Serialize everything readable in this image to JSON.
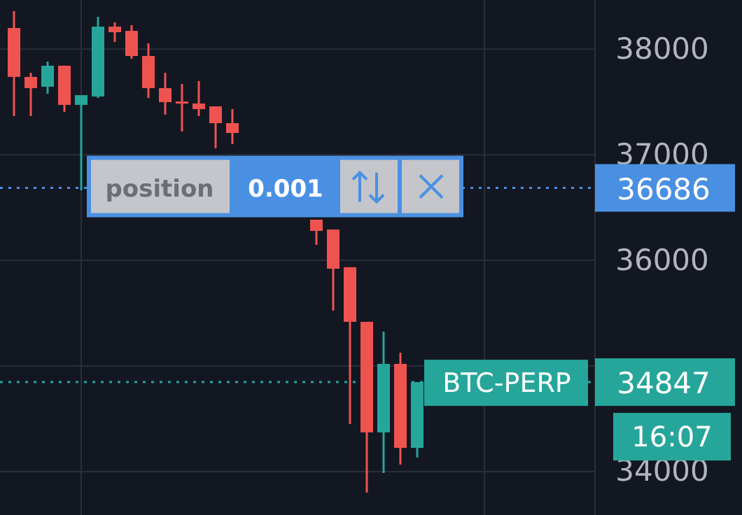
{
  "chart_data": {
    "type": "candlestick",
    "categories": [
      null,
      null,
      null,
      null,
      null,
      null,
      null,
      null,
      null,
      null,
      null,
      null,
      null,
      null,
      null,
      null,
      null,
      null,
      null,
      null,
      null,
      null,
      null,
      null,
      null,
      null,
      null,
      null,
      null,
      null,
      null,
      null,
      null,
      null,
      null
    ],
    "ohlc": [
      [
        38200,
        38359,
        37366,
        37737
      ],
      [
        37737,
        37776,
        37366,
        37631
      ],
      [
        37644,
        37882,
        37578,
        37843
      ],
      [
        37843,
        37843,
        37405,
        37472
      ],
      [
        37472,
        37564,
        36663,
        37564
      ],
      [
        37551,
        38306,
        37538,
        38213
      ],
      [
        38213,
        38253,
        38067,
        38160
      ],
      [
        38173,
        38227,
        37908,
        37935
      ],
      [
        37935,
        38054,
        37538,
        37631
      ],
      [
        37631,
        37776,
        37379,
        37498
      ],
      [
        37504,
        37670,
        37220,
        37498
      ],
      [
        37485,
        37697,
        37366,
        37432
      ],
      [
        37458,
        37458,
        37061,
        37299
      ],
      [
        37299,
        37432,
        37100,
        37206
      ],
      null,
      null,
      null,
      null,
      [
        36385,
        36385,
        36147,
        36279
      ],
      [
        36292,
        36292,
        35524,
        35921
      ],
      [
        35935,
        35935,
        34451,
        35418
      ],
      [
        35418,
        35418,
        33801,
        34371
      ],
      [
        34371,
        35325,
        33987,
        35020
      ],
      [
        35020,
        35126,
        34066,
        34225
      ],
      [
        34225,
        34847,
        34133,
        34847
      ],
      null,
      null,
      null,
      null,
      null,
      null,
      null,
      null,
      null,
      null
    ],
    "colors": [
      "#ef5350",
      "#ef5350",
      "#26a69a",
      "#ef5350",
      "#26a69a",
      "#26a69a",
      "#ef5350",
      "#ef5350",
      "#ef5350",
      "#ef5350",
      "#ef5350",
      "#ef5350",
      "#ef5350",
      "#ef5350",
      null,
      null,
      null,
      null,
      "#ef5350",
      "#ef5350",
      "#ef5350",
      "#ef5350",
      "#26a69a",
      "#ef5350",
      "#26a69a",
      null,
      null,
      null,
      null,
      null,
      null,
      null,
      null,
      null,
      null
    ],
    "ylim": [
      33589,
      38465
    ],
    "yticks": [
      34000,
      {
        "value": 35000,
        "label": null
      },
      36000,
      37000,
      38000
    ],
    "grid": true,
    "tick_labels": "y",
    "ref_lines": [
      {
        "axis": "y",
        "value": 36686,
        "label": "position",
        "color": "#4a90e2",
        "line_style": "dotted"
      },
      {
        "axis": "y",
        "value": 34847,
        "label": "BTC-PERP",
        "color": "#26a69a",
        "line_style": "dotted"
      }
    ],
    "annotations": [
      "0.001",
      "16:07",
      "36686",
      "34847"
    ]
  }
}
